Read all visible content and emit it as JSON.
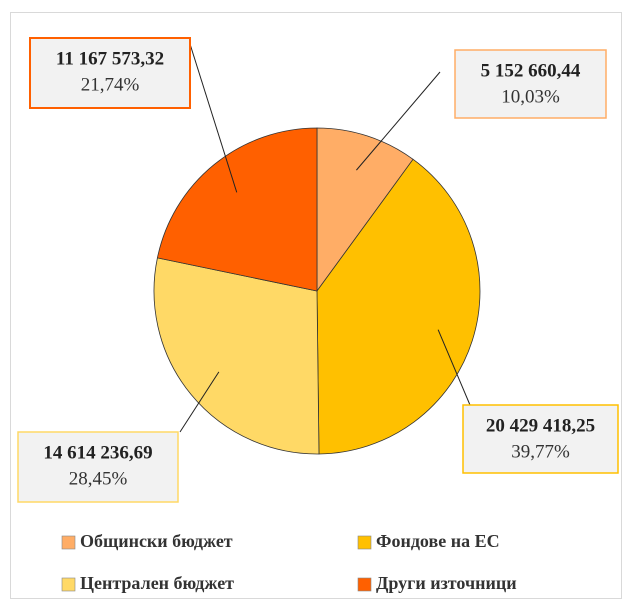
{
  "chart_data": {
    "type": "pie",
    "categories": [
      "Общински бюджет",
      "Фондове на ЕС",
      "Централен бюджет",
      "Други източници"
    ],
    "values": [
      5152660.44,
      20429418.25,
      14614236.69,
      11167573.32
    ],
    "value_labels": [
      "5 152 660,44",
      "20 429 418,25",
      "14 614 236,69",
      "11 167 573,32"
    ],
    "percent_labels": [
      "10,03%",
      "39,77%",
      "28,45%",
      "21,74%"
    ],
    "colors": [
      "#FFAD66",
      "#FFC000",
      "#FFD966",
      "#FF6000"
    ],
    "legend": "bottom"
  }
}
